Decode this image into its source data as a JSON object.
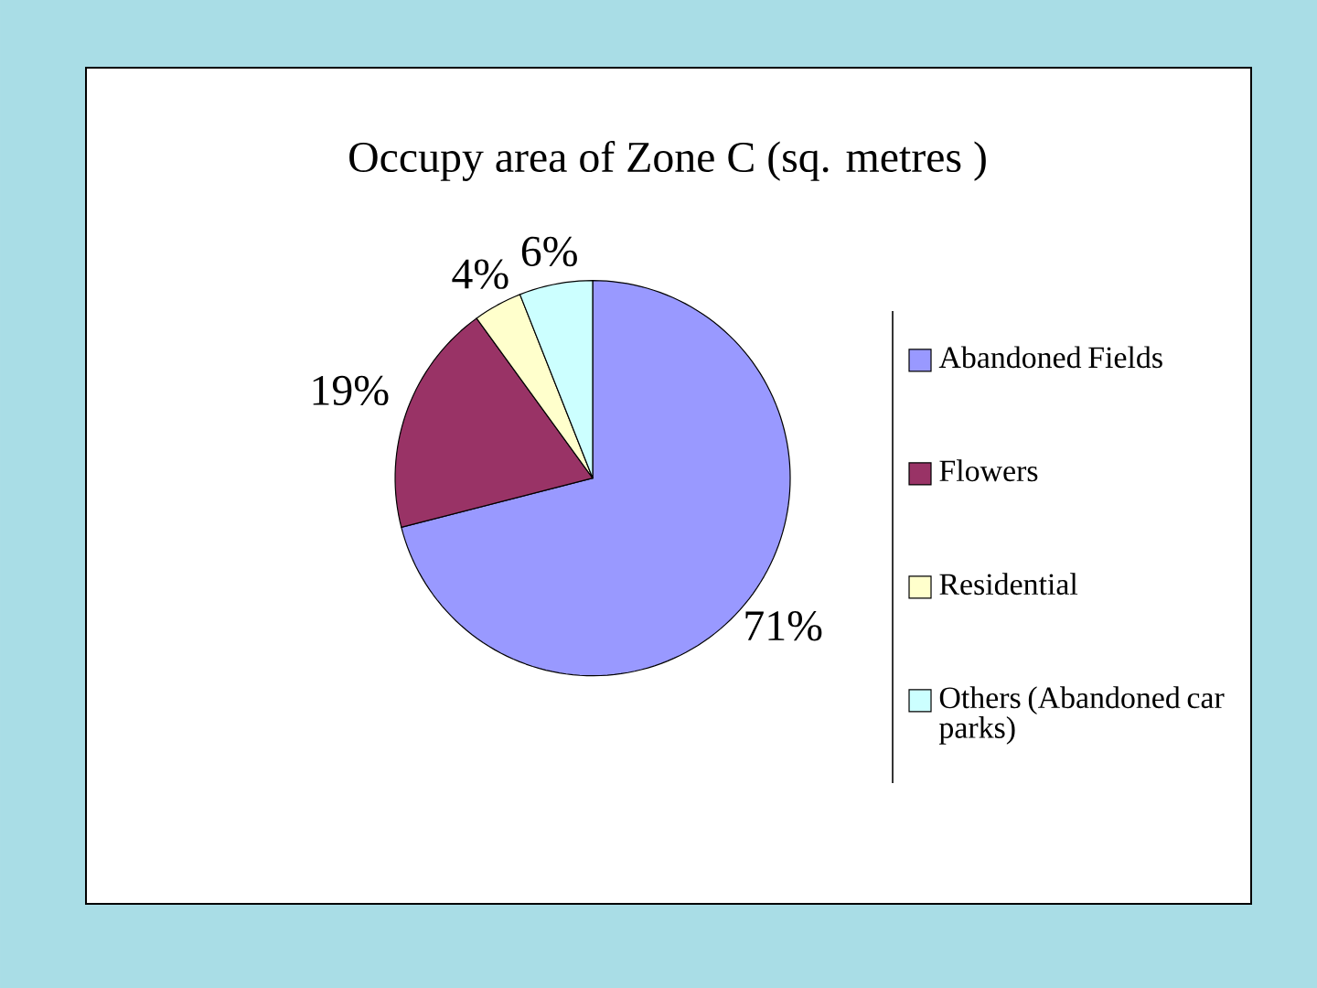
{
  "chart_data": {
    "type": "pie",
    "title": "Occupy area of Zone C (sq. metres )",
    "categories": [
      "Abandoned Fields",
      "Flowers",
      "Residential",
      "Others (Abandoned car parks)"
    ],
    "values": [
      71,
      19,
      4,
      6
    ],
    "colors": [
      "#9999ff",
      "#993366",
      "#ffffcc",
      "#ccffff"
    ],
    "value_labels": [
      "71%",
      "19%",
      "4%",
      "6%"
    ],
    "legend": "right"
  }
}
